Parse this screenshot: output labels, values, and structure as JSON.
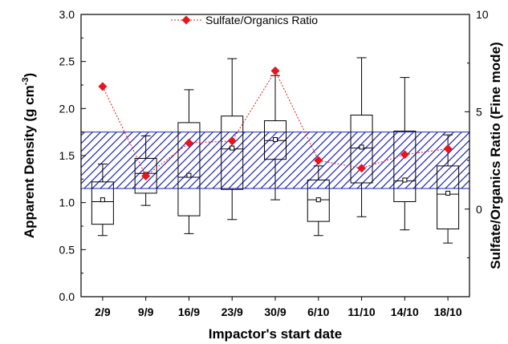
{
  "chart_data": {
    "type": "box",
    "xlabel": "Impactor's start date",
    "ylabel_main": "Apparent Density (g cm",
    "ylabel_sup": "-3",
    "ylabel_close": ")",
    "y2label": "Sulfate/Organics Ratio (Fine mode)",
    "ylim": [
      0.0,
      3.0
    ],
    "y2lim": [
      -4.5,
      10
    ],
    "yticks": [
      "0.0",
      "0.5",
      "1.0",
      "1.5",
      "2.0",
      "2.5",
      "3.0"
    ],
    "y2ticks": [
      "0",
      "5",
      "10"
    ],
    "categories": [
      "2/9",
      "9/9",
      "16/9",
      "23/9",
      "30/9",
      "6/10",
      "11/10",
      "14/10",
      "18/10"
    ],
    "boxes": [
      {
        "whisker_low": 0.65,
        "q1": 0.77,
        "median": 1.01,
        "q3": 1.22,
        "whisker_high": 1.41,
        "mean": 1.03
      },
      {
        "whisker_low": 0.97,
        "q1": 1.1,
        "median": 1.31,
        "q3": 1.47,
        "whisker_high": 1.71,
        "mean": 1.3
      },
      {
        "whisker_low": 0.67,
        "q1": 0.86,
        "median": 1.27,
        "q3": 1.85,
        "whisker_high": 2.2,
        "mean": 1.29
      },
      {
        "whisker_low": 0.82,
        "q1": 1.14,
        "median": 1.57,
        "q3": 1.92,
        "whisker_high": 2.53,
        "mean": 1.58
      },
      {
        "whisker_low": 1.03,
        "q1": 1.46,
        "median": 1.66,
        "q3": 1.87,
        "whisker_high": 2.35,
        "mean": 1.67
      },
      {
        "whisker_low": 0.65,
        "q1": 0.8,
        "median": 1.03,
        "q3": 1.24,
        "whisker_high": 1.39,
        "mean": 1.03
      },
      {
        "whisker_low": 0.85,
        "q1": 1.21,
        "median": 1.58,
        "q3": 1.93,
        "whisker_high": 2.54,
        "mean": 1.59
      },
      {
        "whisker_low": 0.71,
        "q1": 1.01,
        "median": 1.23,
        "q3": 1.76,
        "whisker_high": 2.33,
        "mean": 1.24
      },
      {
        "whisker_low": 0.57,
        "q1": 0.72,
        "median": 1.09,
        "q3": 1.39,
        "whisker_high": 1.72,
        "mean": 1.1
      }
    ],
    "ratio_series": {
      "name": "Sulfate/Organics Ratio",
      "values": [
        6.3,
        1.7,
        3.4,
        3.5,
        7.1,
        2.5,
        2.1,
        2.8,
        3.1
      ],
      "color": "#e8141e"
    },
    "band": {
      "y_low": 1.15,
      "y_high": 1.75,
      "color": "#1c24b4"
    },
    "legend_position": "top-center",
    "grid": false
  }
}
